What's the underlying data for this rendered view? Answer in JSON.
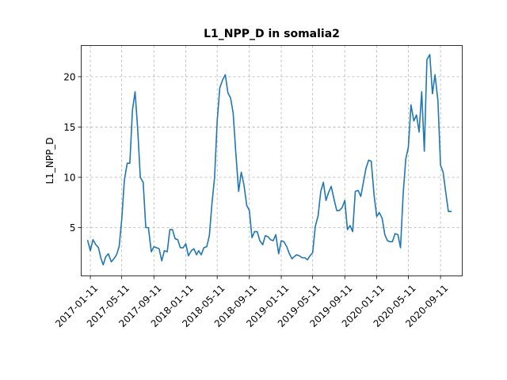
{
  "chart_data": {
    "type": "line",
    "title": "L1_NPP_D in somalia2",
    "xlabel": "",
    "ylabel": "L1_NPP_D",
    "grid": true,
    "grid_style": "dashed",
    "ylim": [
      0.2,
      23.1
    ],
    "xlim": [
      "2016-12-07",
      "2020-12-03"
    ],
    "x_ticks": [
      "2017-01-11",
      "2017-05-11",
      "2017-09-11",
      "2018-01-11",
      "2018-05-11",
      "2018-09-11",
      "2019-01-11",
      "2019-05-11",
      "2019-09-11",
      "2020-01-11",
      "2020-05-11",
      "2020-09-11"
    ],
    "y_ticks": [
      5,
      10,
      15,
      20
    ],
    "series_color": "#1f77b4",
    "series": [
      {
        "x": [
          "2017-01-01",
          "2017-01-11",
          "2017-01-21",
          "2017-02-01",
          "2017-02-11",
          "2017-02-21",
          "2017-03-01",
          "2017-03-11",
          "2017-03-21",
          "2017-04-01",
          "2017-04-11",
          "2017-04-21",
          "2017-05-01",
          "2017-05-11",
          "2017-05-21",
          "2017-06-01",
          "2017-06-11",
          "2017-06-21",
          "2017-07-01",
          "2017-07-11",
          "2017-07-21",
          "2017-08-01",
          "2017-08-11",
          "2017-08-21",
          "2017-09-01",
          "2017-09-11",
          "2017-09-21",
          "2017-10-01",
          "2017-10-11",
          "2017-10-21",
          "2017-11-01",
          "2017-11-11",
          "2017-11-21",
          "2017-12-01",
          "2017-12-11",
          "2017-12-21",
          "2018-01-01",
          "2018-01-11",
          "2018-01-21",
          "2018-02-01",
          "2018-02-11",
          "2018-02-21",
          "2018-03-01",
          "2018-03-11",
          "2018-03-21",
          "2018-04-01",
          "2018-04-11",
          "2018-04-21",
          "2018-05-01",
          "2018-05-11",
          "2018-05-21",
          "2018-06-01",
          "2018-06-11",
          "2018-06-21",
          "2018-07-01",
          "2018-07-11",
          "2018-07-21",
          "2018-08-01",
          "2018-08-11",
          "2018-08-21",
          "2018-09-01",
          "2018-09-11",
          "2018-09-21",
          "2018-10-01",
          "2018-10-11",
          "2018-10-21",
          "2018-11-01",
          "2018-11-11",
          "2018-11-21",
          "2018-12-01",
          "2018-12-11",
          "2018-12-21",
          "2019-01-01",
          "2019-01-11",
          "2019-01-21",
          "2019-02-01",
          "2019-02-11",
          "2019-02-21",
          "2019-03-01",
          "2019-03-11",
          "2019-03-21",
          "2019-04-01",
          "2019-04-11",
          "2019-04-21",
          "2019-05-01",
          "2019-05-11",
          "2019-05-21",
          "2019-06-01",
          "2019-06-11",
          "2019-06-21",
          "2019-07-01",
          "2019-07-11",
          "2019-07-21",
          "2019-08-01",
          "2019-08-11",
          "2019-08-21",
          "2019-09-01",
          "2019-09-11",
          "2019-09-21",
          "2019-10-01",
          "2019-10-11",
          "2019-10-21",
          "2019-11-01",
          "2019-11-11",
          "2019-11-21",
          "2019-12-01",
          "2019-12-11",
          "2019-12-21",
          "2020-01-01",
          "2020-01-11",
          "2020-01-21",
          "2020-02-01",
          "2020-02-11",
          "2020-02-21",
          "2020-03-01",
          "2020-03-11",
          "2020-03-21",
          "2020-04-01",
          "2020-04-11",
          "2020-04-21",
          "2020-05-01",
          "2020-05-11",
          "2020-05-21",
          "2020-06-01",
          "2020-06-11",
          "2020-06-21",
          "2020-07-01",
          "2020-07-11",
          "2020-07-21",
          "2020-08-01",
          "2020-08-11",
          "2020-08-21",
          "2020-09-01",
          "2020-09-11",
          "2020-09-21",
          "2020-10-01",
          "2020-10-11",
          "2020-10-21"
        ],
        "values": [
          3.7,
          2.7,
          3.8,
          3.3,
          3.0,
          1.9,
          1.3,
          2.1,
          2.4,
          1.6,
          1.9,
          2.3,
          3.1,
          5.8,
          9.7,
          11.4,
          11.4,
          16.7,
          18.5,
          14.8,
          10.0,
          9.5,
          5.0,
          5.0,
          2.6,
          3.1,
          3.0,
          2.9,
          1.7,
          2.7,
          2.6,
          4.8,
          4.8,
          3.9,
          3.8,
          3.0,
          3.0,
          3.4,
          2.2,
          2.7,
          2.9,
          2.3,
          2.7,
          2.3,
          3.0,
          3.1,
          4.2,
          7.4,
          10.0,
          15.6,
          18.9,
          19.7,
          20.2,
          18.4,
          17.9,
          16.4,
          12.5,
          8.6,
          10.5,
          9.3,
          7.2,
          6.7,
          4.0,
          4.6,
          4.6,
          3.7,
          3.3,
          4.2,
          4.1,
          3.8,
          3.7,
          4.3,
          2.4,
          3.7,
          3.6,
          3.1,
          2.4,
          1.9,
          2.1,
          2.3,
          2.2,
          2.0,
          2.0,
          1.8,
          2.2,
          2.5,
          5.1,
          6.2,
          8.6,
          9.5,
          7.7,
          8.5,
          9.1,
          7.8,
          6.7,
          6.7,
          7.0,
          7.7,
          4.8,
          5.2,
          4.6,
          8.6,
          8.7,
          8.1,
          9.5,
          10.9,
          11.7,
          11.6,
          8.2,
          6.1,
          6.5,
          5.9,
          4.3,
          3.7,
          3.6,
          3.6,
          4.4,
          4.3,
          3.0,
          8.3,
          11.8,
          13.0,
          17.2,
          15.6,
          16.2,
          14.5,
          18.5,
          12.6,
          21.7,
          22.2,
          18.3,
          20.2,
          17.6,
          11.2,
          10.5,
          8.5,
          6.6,
          6.6
        ]
      }
    ]
  }
}
